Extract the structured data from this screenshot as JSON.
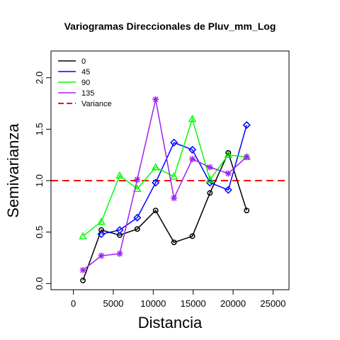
{
  "chart_data": {
    "type": "line",
    "title": "Variogramas Direccionales de Pluv_mm_Log",
    "xlabel": "Distancia",
    "ylabel": "Semivarianza",
    "xlim": [
      -2800,
      27000
    ],
    "ylim": [
      -0.06,
      2.26
    ],
    "xticks": [
      0,
      5000,
      10000,
      15000,
      20000,
      25000
    ],
    "yticks": [
      0.0,
      0.5,
      1.0,
      1.5,
      2.0
    ],
    "xtick_labels": [
      "0",
      "5000",
      "10000",
      "15000",
      "20000",
      "25000"
    ],
    "ytick_labels": [
      "0.0",
      "0.5",
      "1.0",
      "1.5",
      "2.0"
    ],
    "grid": false,
    "legend_position": "top-left",
    "reference_line": {
      "name": "Variance",
      "y": 1.0,
      "color": "#ff0000",
      "dashed": true
    },
    "series": [
      {
        "name": "0",
        "color": "#000000",
        "marker": "circle",
        "x": [
          1200,
          3500,
          5800,
          8000,
          10300,
          12600,
          14900,
          17100,
          19400,
          21700
        ],
        "y": [
          0.03,
          0.52,
          0.47,
          0.53,
          0.71,
          0.4,
          0.46,
          0.88,
          1.27,
          0.71
        ]
      },
      {
        "name": "45",
        "color": "#0000ff",
        "marker": "diamond",
        "x": [
          3500,
          5800,
          8000,
          10300,
          12600,
          14900,
          17100,
          19400,
          21700
        ],
        "y": [
          0.48,
          0.52,
          0.64,
          0.98,
          1.37,
          1.3,
          0.98,
          0.91,
          1.54
        ]
      },
      {
        "name": "90",
        "color": "#00ff00",
        "marker": "triangle",
        "x": [
          1200,
          3500,
          5800,
          8000,
          10300,
          12600,
          14900,
          17100,
          19400,
          21700
        ],
        "y": [
          0.46,
          0.6,
          1.05,
          0.92,
          1.13,
          1.04,
          1.6,
          1.01,
          1.25,
          1.23
        ]
      },
      {
        "name": "135",
        "color": "#a020f0",
        "marker": "asterisk",
        "x": [
          1200,
          3500,
          5800,
          8000,
          10300,
          12600,
          14900,
          17100,
          19400,
          21700
        ],
        "y": [
          0.13,
          0.27,
          0.29,
          1.01,
          1.79,
          0.83,
          1.21,
          1.13,
          1.07,
          1.23
        ]
      }
    ]
  }
}
